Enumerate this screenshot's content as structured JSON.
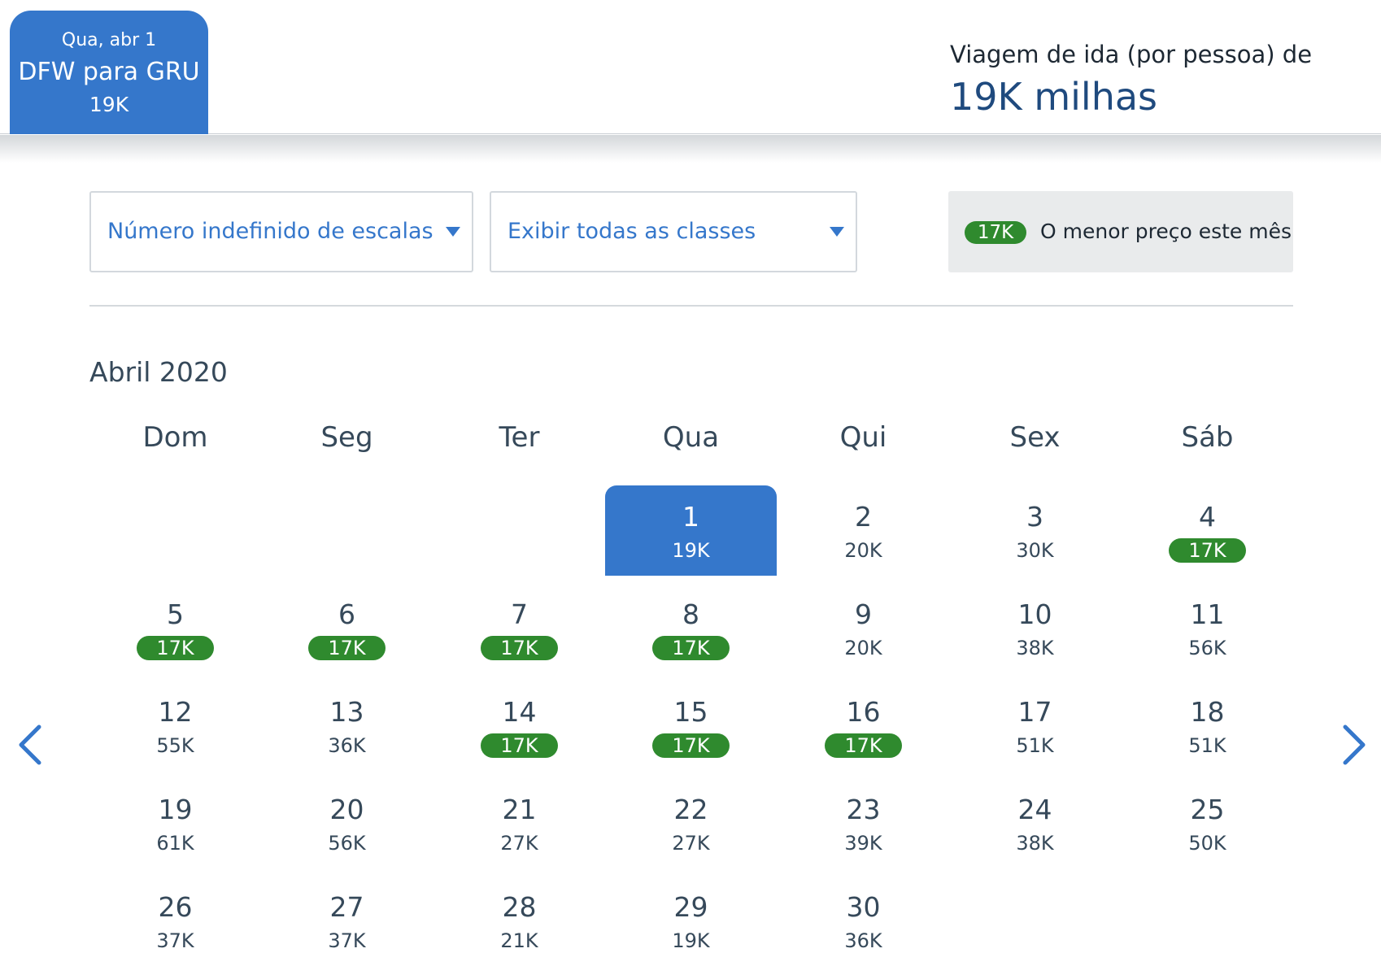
{
  "header": {
    "tab": {
      "date": "Qua, abr 1",
      "route": "DFW para GRU",
      "price": "19K"
    },
    "trip_label": "Viagem de ida (por pessoa) de",
    "trip_price": "19K milhas"
  },
  "filters": {
    "stops": "Número indefinido de escalas",
    "classes": "Exibir todas as classes"
  },
  "legend": {
    "badge": "17K",
    "text": "O menor preço este mês",
    "badge_color": "#2f8a2e"
  },
  "calendar": {
    "month": "Abril 2020",
    "weekdays": [
      "Dom",
      "Seg",
      "Ter",
      "Qua",
      "Qui",
      "Sex",
      "Sáb"
    ],
    "start_weekday_index": 3,
    "accent_color": "#3577cb",
    "days": [
      {
        "day": "1",
        "price": "19K",
        "selected": true
      },
      {
        "day": "2",
        "price": "20K"
      },
      {
        "day": "3",
        "price": "30K"
      },
      {
        "day": "4",
        "price": "17K",
        "lowest": true
      },
      {
        "day": "5",
        "price": "17K",
        "lowest": true
      },
      {
        "day": "6",
        "price": "17K",
        "lowest": true
      },
      {
        "day": "7",
        "price": "17K",
        "lowest": true
      },
      {
        "day": "8",
        "price": "17K",
        "lowest": true
      },
      {
        "day": "9",
        "price": "20K"
      },
      {
        "day": "10",
        "price": "38K"
      },
      {
        "day": "11",
        "price": "56K"
      },
      {
        "day": "12",
        "price": "55K"
      },
      {
        "day": "13",
        "price": "36K"
      },
      {
        "day": "14",
        "price": "17K",
        "lowest": true
      },
      {
        "day": "15",
        "price": "17K",
        "lowest": true
      },
      {
        "day": "16",
        "price": "17K",
        "lowest": true
      },
      {
        "day": "17",
        "price": "51K"
      },
      {
        "day": "18",
        "price": "51K"
      },
      {
        "day": "19",
        "price": "61K"
      },
      {
        "day": "20",
        "price": "56K"
      },
      {
        "day": "21",
        "price": "27K"
      },
      {
        "day": "22",
        "price": "27K"
      },
      {
        "day": "23",
        "price": "39K"
      },
      {
        "day": "24",
        "price": "38K"
      },
      {
        "day": "25",
        "price": "50K"
      },
      {
        "day": "26",
        "price": "37K"
      },
      {
        "day": "27",
        "price": "37K"
      },
      {
        "day": "28",
        "price": "21K"
      },
      {
        "day": "29",
        "price": "19K"
      },
      {
        "day": "30",
        "price": "36K"
      }
    ]
  },
  "nav": {
    "prev_icon": "chevron-left-icon",
    "next_icon": "chevron-right-icon"
  }
}
